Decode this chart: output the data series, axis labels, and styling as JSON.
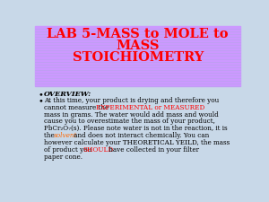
{
  "title_line1": "LAB 5-MASS to MOLE to",
  "title_line2": "MASS",
  "title_line3": "STOICHIOMETRY",
  "title_color": "#FF0000",
  "title_bg_color": "#CC99FF",
  "bg_color": "#C8D8E8",
  "bullet1": "OVERVIEW:",
  "font_family": "serif",
  "lines": [
    [
      [
        "At this time, your product is drying and therefore you",
        "black",
        "normal",
        "normal"
      ]
    ],
    [
      [
        "cannot measure the ",
        "black",
        "normal",
        "normal"
      ],
      [
        "EXPERIMENTAL or MEASURED",
        "#FF0000",
        "normal",
        "normal"
      ]
    ],
    [
      [
        "mass in grams. The water would add mass and would",
        "black",
        "normal",
        "normal"
      ]
    ],
    [
      [
        "cause you to overestimate the mass of your product,",
        "black",
        "normal",
        "normal"
      ]
    ],
    [
      [
        "PbCr₂O₇(s). Please note water is not in the reaction, it is",
        "black",
        "normal",
        "normal"
      ]
    ],
    [
      [
        "the ",
        "black",
        "normal",
        "normal"
      ],
      [
        "solvent",
        "#FF6600",
        "italic",
        "normal"
      ],
      [
        " and does not interact chemically. You can",
        "black",
        "normal",
        "normal"
      ]
    ],
    [
      [
        "however calculate your THEORETICAL YEILD, the mass",
        "black",
        "normal",
        "normal"
      ]
    ],
    [
      [
        "of product you ",
        "black",
        "normal",
        "normal"
      ],
      [
        "SHOULD",
        "#FF0000",
        "normal",
        "normal"
      ],
      [
        " have collected in your filter",
        "black",
        "normal",
        "normal"
      ]
    ],
    [
      [
        "paper cone.",
        "black",
        "normal",
        "normal"
      ]
    ]
  ]
}
